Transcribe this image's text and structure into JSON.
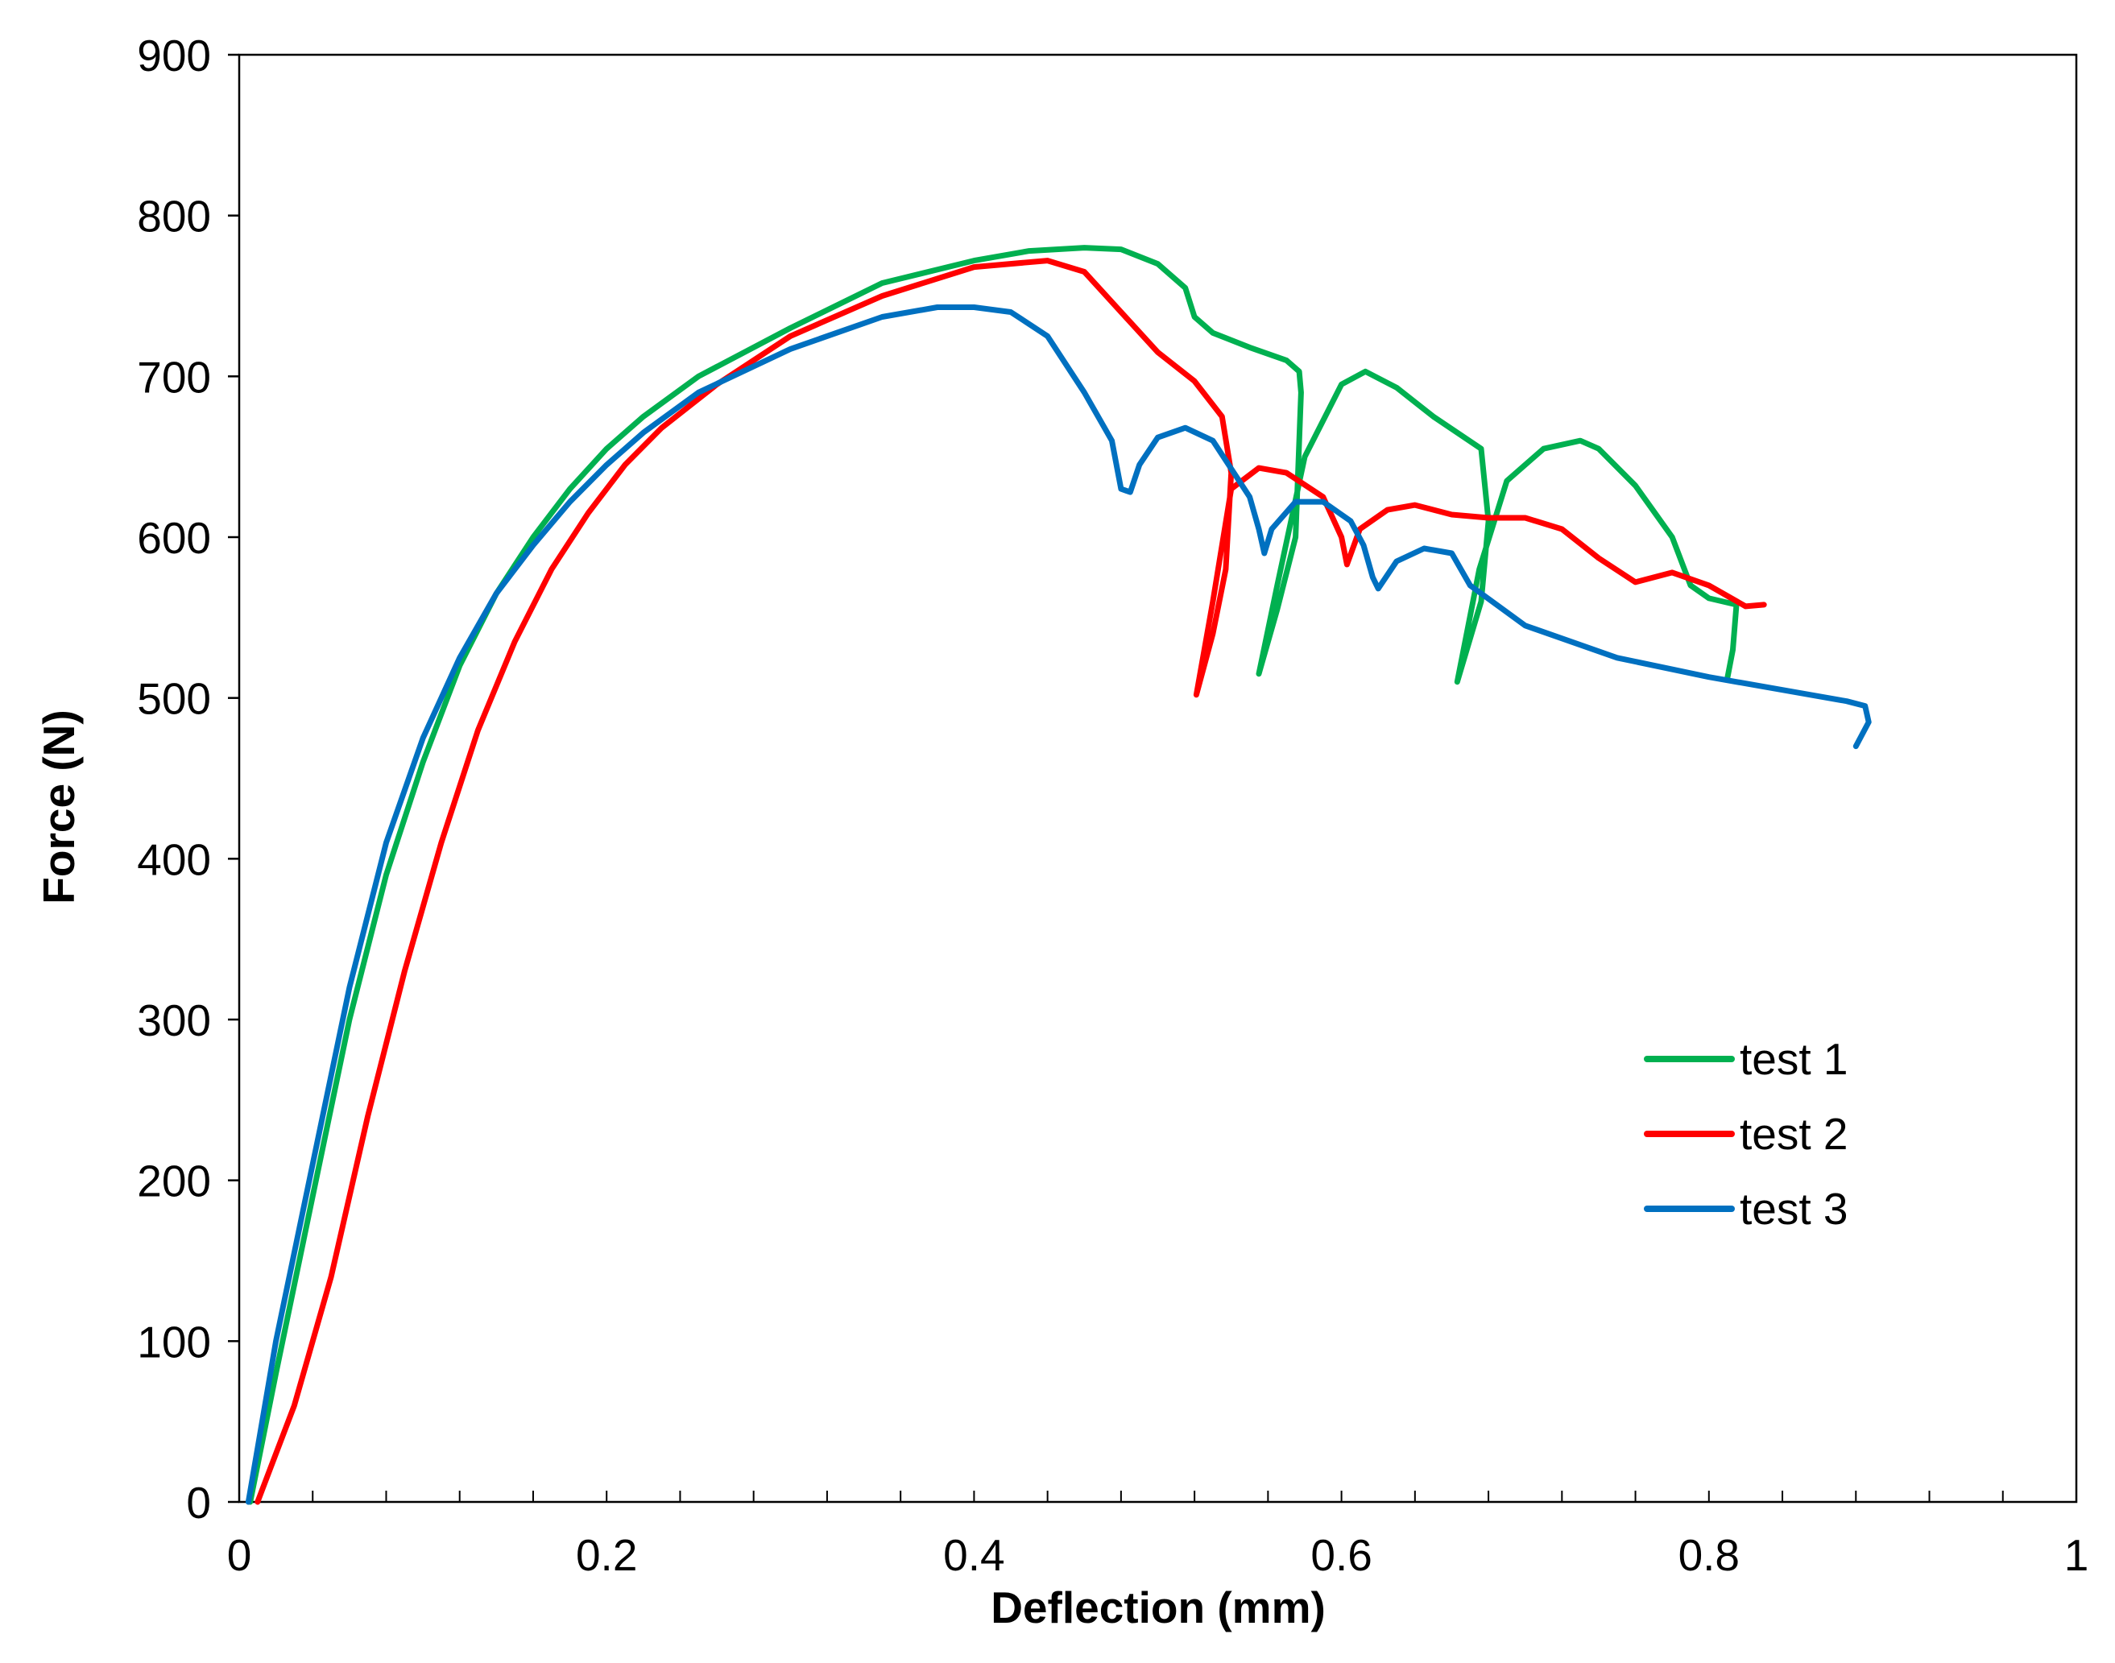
{
  "chart_data": {
    "type": "line",
    "title": "",
    "xlabel": "Deflection (mm)",
    "ylabel": "Force (N)",
    "xlim": [
      0,
      1
    ],
    "ylim": [
      0,
      900
    ],
    "x_ticks": [
      0,
      0.2,
      0.4,
      0.6,
      0.8,
      1
    ],
    "x_tick_labels": [
      "0",
      "0.2",
      "0.4",
      "0.6",
      "0.8",
      "1"
    ],
    "y_ticks": [
      0,
      100,
      200,
      300,
      400,
      500,
      600,
      700,
      800,
      900
    ],
    "y_tick_labels": [
      "0",
      "100",
      "200",
      "300",
      "400",
      "500",
      "600",
      "700",
      "800",
      "900"
    ],
    "x_minor_step": 0.04,
    "grid": false,
    "legend_position": "lower-right",
    "series": [
      {
        "name": "test 1",
        "color": "#00b050",
        "x": [
          0.006,
          0.02,
          0.04,
          0.06,
          0.08,
          0.1,
          0.12,
          0.14,
          0.16,
          0.18,
          0.2,
          0.22,
          0.25,
          0.3,
          0.35,
          0.4,
          0.43,
          0.46,
          0.48,
          0.5,
          0.515,
          0.52,
          0.53,
          0.55,
          0.57,
          0.577,
          0.578,
          0.575,
          0.565,
          0.555,
          0.565,
          0.58,
          0.6,
          0.613,
          0.63,
          0.65,
          0.676,
          0.68,
          0.676,
          0.663,
          0.675,
          0.69,
          0.71,
          0.73,
          0.74,
          0.76,
          0.78,
          0.79,
          0.8,
          0.815,
          0.813,
          0.81
        ],
        "y": [
          0,
          80,
          190,
          300,
          390,
          460,
          520,
          565,
          600,
          630,
          655,
          675,
          700,
          730,
          758,
          772,
          778,
          780,
          779,
          770,
          755,
          737,
          727,
          718,
          710,
          703,
          690,
          600,
          555,
          515,
          570,
          650,
          695,
          703,
          693,
          675,
          655,
          610,
          560,
          510,
          580,
          635,
          655,
          660,
          655,
          632,
          600,
          570,
          562,
          558,
          530,
          512
        ]
      },
      {
        "name": "test 2",
        "color": "#ff0000",
        "x": [
          0.01,
          0.03,
          0.05,
          0.07,
          0.09,
          0.11,
          0.13,
          0.15,
          0.17,
          0.19,
          0.21,
          0.23,
          0.26,
          0.3,
          0.35,
          0.4,
          0.44,
          0.46,
          0.48,
          0.5,
          0.52,
          0.535,
          0.54,
          0.537,
          0.53,
          0.521,
          0.53,
          0.54,
          0.555,
          0.57,
          0.59,
          0.6,
          0.603,
          0.61,
          0.625,
          0.64,
          0.66,
          0.68,
          0.7,
          0.72,
          0.74,
          0.76,
          0.78,
          0.8,
          0.82,
          0.83
        ],
        "y": [
          0,
          60,
          140,
          240,
          330,
          410,
          480,
          535,
          580,
          615,
          645,
          668,
          695,
          725,
          750,
          768,
          772,
          765,
          740,
          715,
          697,
          675,
          640,
          580,
          540,
          502,
          560,
          630,
          643,
          640,
          625,
          600,
          583,
          605,
          617,
          620,
          614,
          612,
          612,
          605,
          587,
          572,
          578,
          570,
          557,
          558
        ]
      },
      {
        "name": "test 3",
        "color": "#0070c0",
        "x": [
          0.005,
          0.02,
          0.04,
          0.06,
          0.08,
          0.1,
          0.12,
          0.14,
          0.16,
          0.18,
          0.2,
          0.22,
          0.25,
          0.3,
          0.35,
          0.38,
          0.4,
          0.42,
          0.44,
          0.46,
          0.475,
          0.48,
          0.485,
          0.49,
          0.5,
          0.515,
          0.53,
          0.55,
          0.555,
          0.558,
          0.562,
          0.575,
          0.59,
          0.605,
          0.612,
          0.617,
          0.62,
          0.63,
          0.645,
          0.66,
          0.67,
          0.7,
          0.75,
          0.8,
          0.85,
          0.875,
          0.885,
          0.887,
          0.88
        ],
        "y": [
          0,
          100,
          210,
          320,
          410,
          475,
          525,
          565,
          595,
          622,
          645,
          665,
          690,
          717,
          737,
          743,
          743,
          740,
          725,
          690,
          660,
          630,
          628,
          645,
          662,
          668,
          660,
          625,
          605,
          590,
          605,
          622,
          622,
          610,
          595,
          575,
          568,
          585,
          593,
          590,
          570,
          545,
          525,
          513,
          503,
          498,
          495,
          485,
          470
        ]
      }
    ]
  }
}
